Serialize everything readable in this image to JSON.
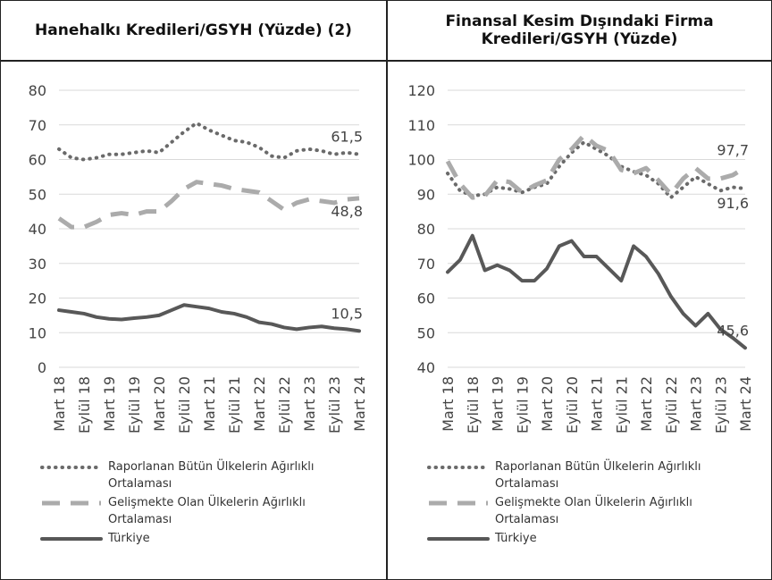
{
  "chart_data": [
    {
      "type": "line",
      "title": "Hanehalkı Kredileri/GSYH (Yüzde) (2)",
      "categories": [
        "Mart 18",
        null,
        "Eylül 18",
        null,
        "Mart 19",
        null,
        "Eylül 19",
        null,
        "Mart 20",
        null,
        "Eylül 20",
        null,
        "Mart 21",
        null,
        "Eylül 21",
        null,
        "Mart 22",
        null,
        "Eylül 22",
        null,
        "Mart 23",
        null,
        "Eylül 23",
        null,
        "Mart 24"
      ],
      "ylim": [
        0,
        80
      ],
      "yticks": [
        0,
        10,
        20,
        30,
        40,
        50,
        60,
        70,
        80
      ],
      "grid": true,
      "series": [
        {
          "name": "Raporlanan Bütün Ülkelerin Ağırlıklı Ortalaması",
          "color": "#6a6a6a",
          "style": "dotted",
          "values": [
            63,
            60.5,
            60,
            60.5,
            61.5,
            61.5,
            62,
            62.5,
            62,
            65,
            68,
            70.5,
            68.5,
            67,
            65.5,
            65,
            63.5,
            61,
            60.5,
            62.5,
            63,
            62.5,
            61.5,
            62,
            61.5
          ],
          "value_labels": [
            null,
            null,
            null,
            null,
            null,
            null,
            null,
            null,
            null,
            null,
            null,
            null,
            null,
            null,
            null,
            null,
            null,
            null,
            null,
            null,
            null,
            null,
            null,
            null,
            "61,5"
          ]
        },
        {
          "name": "Gelişmekte Olan Ülkelerin Ağırlıklı Ortalaması",
          "color": "#ababab",
          "style": "dashed",
          "values": [
            43,
            40.5,
            40.5,
            42,
            44,
            44.5,
            44,
            45,
            45,
            48,
            51.5,
            53.5,
            53,
            52.5,
            51.5,
            51,
            50.5,
            48,
            45.5,
            47.5,
            48.5,
            48,
            47.5,
            48.5,
            48.8
          ],
          "value_labels": [
            null,
            null,
            null,
            null,
            null,
            null,
            null,
            null,
            null,
            null,
            null,
            null,
            null,
            null,
            null,
            null,
            null,
            null,
            null,
            null,
            null,
            null,
            null,
            null,
            "48,8"
          ]
        },
        {
          "name": "Türkiye",
          "color": "#585858",
          "style": "solid",
          "values": [
            16.5,
            16,
            15.5,
            14.5,
            14,
            13.8,
            14.2,
            14.5,
            15,
            16.5,
            18,
            17.5,
            17,
            16,
            15.5,
            14.5,
            13,
            12.5,
            11.5,
            11,
            11.5,
            11.8,
            11.3,
            11,
            10.5
          ],
          "value_labels": [
            null,
            null,
            null,
            null,
            null,
            null,
            null,
            null,
            null,
            null,
            null,
            null,
            null,
            null,
            null,
            null,
            null,
            null,
            null,
            null,
            null,
            null,
            null,
            null,
            "10,5"
          ]
        }
      ]
    },
    {
      "type": "line",
      "title": "Finansal Kesim Dışındaki Firma Kredileri/GSYH (Yüzde)",
      "categories": [
        "Mart 18",
        null,
        "Eylül 18",
        null,
        "Mart 19",
        null,
        "Eylül 19",
        null,
        "Mart 20",
        null,
        "Eylül 20",
        null,
        "Mart 21",
        null,
        "Eylül 21",
        null,
        "Mart 22",
        null,
        "Eylül 22",
        null,
        "Mart 23",
        null,
        "Eylül 23",
        null,
        "Mart 24"
      ],
      "ylim": [
        40,
        120
      ],
      "yticks": [
        40,
        50,
        60,
        70,
        80,
        90,
        100,
        110,
        120
      ],
      "grid": true,
      "series": [
        {
          "name": "Raporlanan Bütün Ülkelerin Ağırlıklı Ortalaması",
          "color": "#6a6a6a",
          "style": "dotted",
          "values": [
            96,
            91,
            89.5,
            90,
            92,
            91.5,
            90.5,
            92,
            93,
            98,
            102,
            105,
            103,
            101,
            98,
            96.5,
            95.5,
            93,
            89,
            92,
            95,
            93,
            91,
            92,
            91.6
          ],
          "value_labels": [
            null,
            null,
            null,
            null,
            null,
            null,
            null,
            null,
            null,
            null,
            null,
            null,
            null,
            null,
            null,
            null,
            null,
            null,
            null,
            null,
            null,
            null,
            null,
            null,
            "91,6"
          ]
        },
        {
          "name": "Gelişmekte Olan Ülkelerin Ağırlıklı Ortalaması",
          "color": "#ababab",
          "style": "dashed",
          "values": [
            99.5,
            93,
            89,
            89.5,
            94,
            93.5,
            90.5,
            92.5,
            94,
            100,
            103,
            107,
            104,
            102.5,
            97,
            96,
            97.5,
            94,
            90,
            94.5,
            97.5,
            94.5,
            94.5,
            95.5,
            97.7
          ],
          "value_labels": [
            null,
            null,
            null,
            null,
            null,
            null,
            null,
            null,
            null,
            null,
            null,
            null,
            null,
            null,
            null,
            null,
            null,
            null,
            null,
            null,
            null,
            null,
            null,
            null,
            "97,7"
          ]
        },
        {
          "name": "Türkiye",
          "color": "#585858",
          "style": "solid",
          "values": [
            67.5,
            71,
            78,
            68,
            69.5,
            68,
            65,
            65,
            68.5,
            75,
            76.5,
            72,
            72,
            68.5,
            65,
            75,
            72,
            67,
            60.5,
            55.5,
            52,
            55.5,
            51,
            48.5,
            45.6
          ],
          "value_labels": [
            null,
            null,
            null,
            null,
            null,
            null,
            null,
            null,
            null,
            null,
            null,
            null,
            null,
            null,
            null,
            null,
            null,
            null,
            null,
            null,
            null,
            null,
            null,
            null,
            "45,6"
          ]
        }
      ]
    }
  ]
}
